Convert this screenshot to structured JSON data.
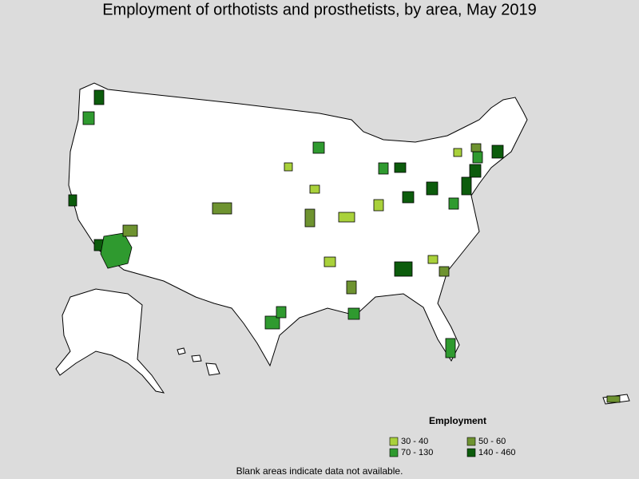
{
  "title": "Employment of orthotists and prosthetists, by area, May 2019",
  "legend": {
    "title": "Employment",
    "items": [
      {
        "label": "30 - 40",
        "color": "#a9d13b"
      },
      {
        "label": "50 - 60",
        "color": "#6e9330"
      },
      {
        "label": "70 - 130",
        "color": "#2f9a2f"
      },
      {
        "label": "140 - 460",
        "color": "#0c5c0c"
      }
    ]
  },
  "footnote": "Blank areas indicate data not available."
}
